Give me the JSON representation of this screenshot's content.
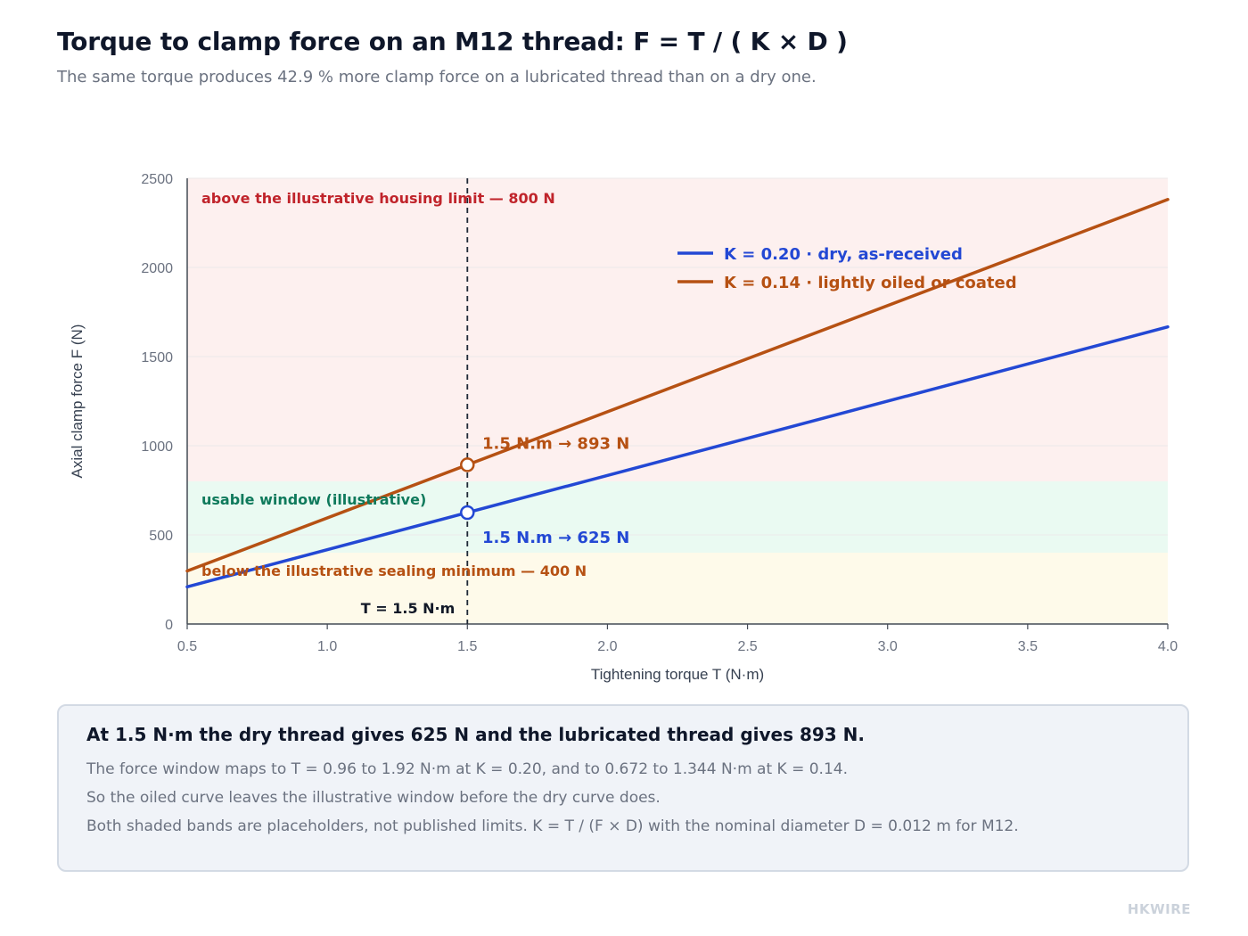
{
  "header": {
    "title": "Torque to clamp force on an M12 thread: F = T / ( K × D )",
    "subtitle": "The same torque produces 42.9 % more clamp force on a lubricated thread than on a dry one."
  },
  "chart_data": {
    "type": "line",
    "xlabel": "Tightening torque T (N·m)",
    "ylabel": "Axial clamp force F (N)",
    "xlim": [
      0.5,
      4.0
    ],
    "ylim": [
      0,
      2500
    ],
    "x_ticks": [
      "0.5",
      "1.0",
      "1.5",
      "2.0",
      "2.5",
      "3.0",
      "3.5",
      "4.0"
    ],
    "y_ticks": [
      "0",
      "500",
      "1000",
      "1500",
      "2000",
      "2500"
    ],
    "grid": "horizontal",
    "legend_position": "top-right",
    "series": [
      {
        "name": "K = 0.20 · dry, as-received",
        "color": "#2348d4",
        "x": [
          0.5,
          4.0
        ],
        "y": [
          208.3,
          1666.7
        ]
      },
      {
        "name": "K = 0.14 · lightly oiled or coated",
        "color": "#b65113",
        "x": [
          0.5,
          4.0
        ],
        "y": [
          297.6,
          2381.0
        ]
      }
    ],
    "bands": [
      {
        "label": "above the illustrative housing limit — 800 N",
        "from": 800,
        "to": 2500,
        "fill": "#fdf0ef",
        "label_color": "#c0242b"
      },
      {
        "label": "usable window (illustrative)",
        "from": 400,
        "to": 800,
        "fill": "#eafaf2",
        "label_color": "#0f7a5c"
      },
      {
        "label": "below the illustrative sealing minimum — 400 N",
        "from": 0,
        "to": 400,
        "fill": "#fefaea",
        "label_color": "#b65113"
      }
    ],
    "reference_line": {
      "x": 1.5,
      "label": "T = 1.5 N·m"
    },
    "markers": [
      {
        "x": 1.5,
        "y": 893,
        "label": "1.5 N.m → 893 N",
        "color": "#b65113"
      },
      {
        "x": 1.5,
        "y": 625,
        "label": "1.5 N.m → 625 N",
        "color": "#2348d4"
      }
    ]
  },
  "note": {
    "heading": "At 1.5 N·m the dry thread gives 625 N and the lubricated thread gives 893 N.",
    "lines": [
      "The force window maps to T = 0.96 to 1.92 N·m at K = 0.20, and to 0.672 to 1.344 N·m at K = 0.14.",
      "So the oiled curve leaves the illustrative window before the dry curve does.",
      "Both shaded bands are placeholders, not published limits. K = T / (F × D) with the nominal diameter D = 0.012 m for M12."
    ]
  },
  "brand": "HKWIRE"
}
